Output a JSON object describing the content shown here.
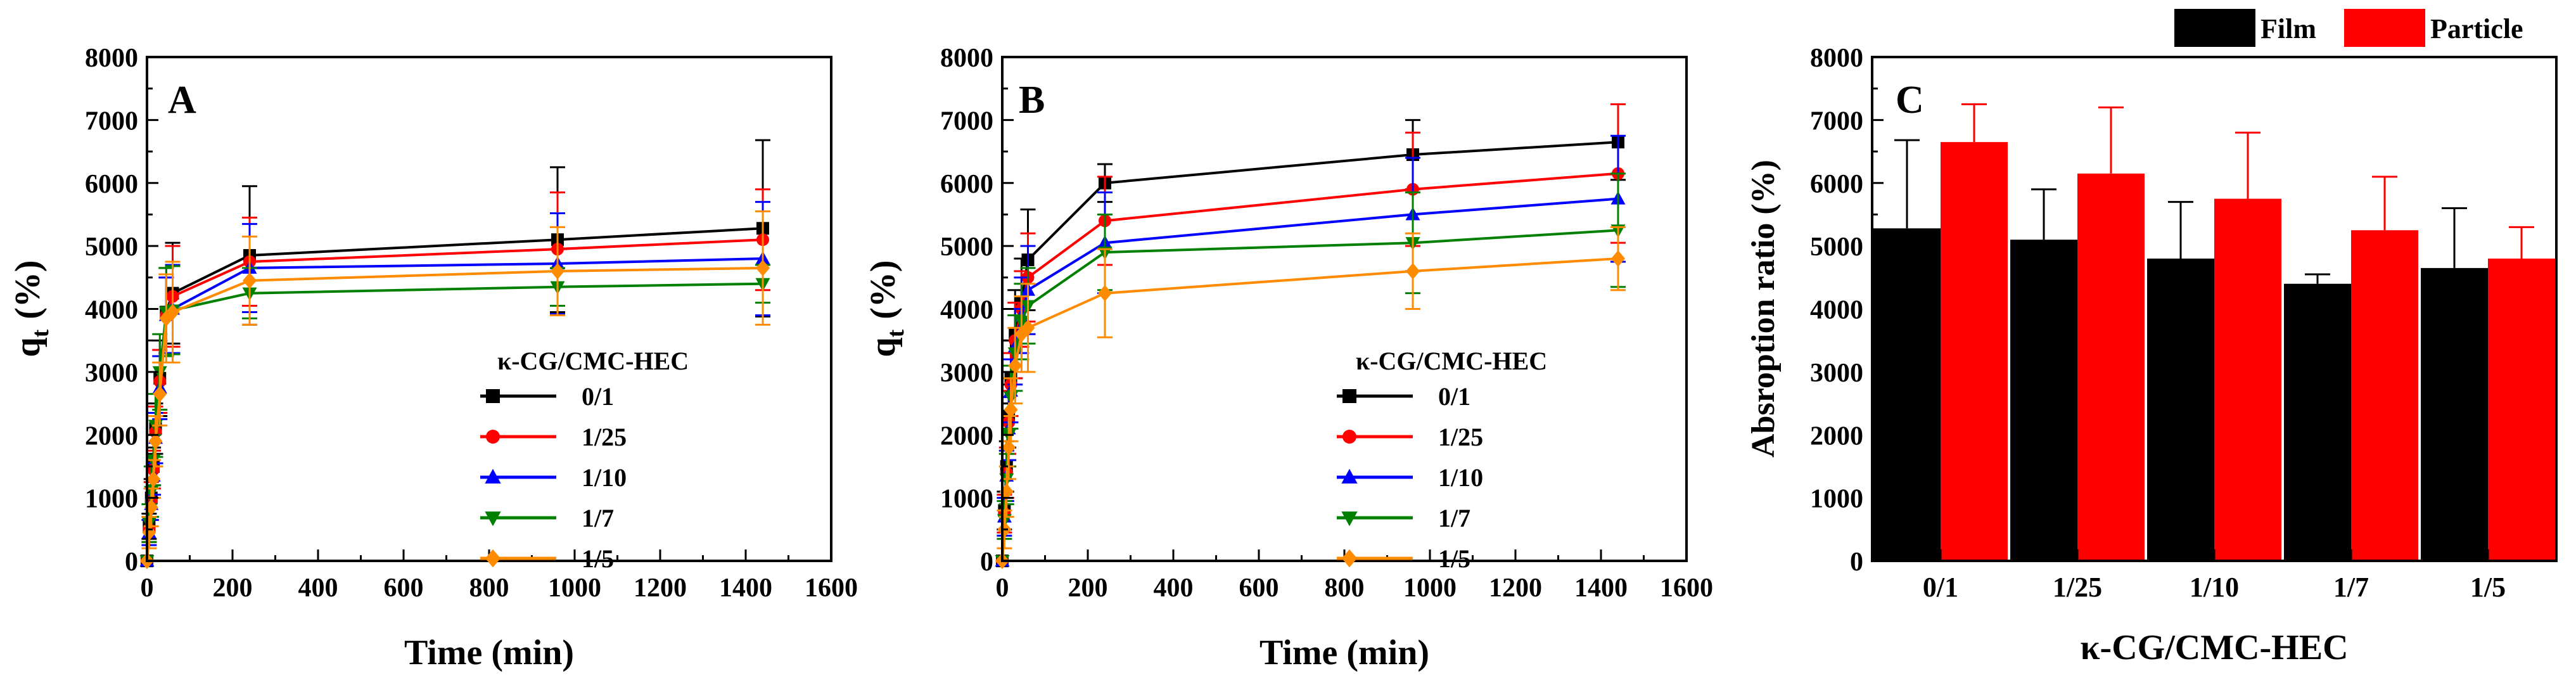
{
  "chart_data": [
    {
      "type": "line",
      "panel_label": "A",
      "xlabel": "Time (min)",
      "ylabel": "q",
      "ylabel_sub": "t",
      "ylabel_unit": "(%)",
      "xlim": [
        0,
        1600
      ],
      "ylim": [
        0,
        8000
      ],
      "xticks": [
        "0",
        "200",
        "400",
        "600",
        "800",
        "1000",
        "1200",
        "1400",
        "1600"
      ],
      "yticks": [
        "0",
        "1000",
        "2000",
        "3000",
        "4000",
        "5000",
        "6000",
        "7000",
        "8000"
      ],
      "legend_title": "κ-CG/CMC-HEC",
      "legend_position": "center-right",
      "x": [
        0,
        5,
        10,
        15,
        20,
        30,
        45,
        60,
        240,
        960,
        1440
      ],
      "series": [
        {
          "name": "0/1",
          "color": "#000000",
          "marker": "square",
          "values": [
            0,
            550,
            1000,
            1500,
            2100,
            2900,
            3950,
            4250,
            4850,
            5100,
            5280
          ],
          "errors": [
            0,
            200,
            300,
            300,
            400,
            600,
            700,
            800,
            1100,
            1150,
            1400
          ]
        },
        {
          "name": "1/25",
          "color": "#ff0000",
          "marker": "circle",
          "values": [
            0,
            500,
            950,
            1450,
            2050,
            2850,
            3900,
            4200,
            4750,
            4950,
            5100
          ],
          "errors": [
            0,
            200,
            300,
            300,
            400,
            500,
            600,
            800,
            700,
            900,
            800
          ]
        },
        {
          "name": "1/10",
          "color": "#0000ff",
          "marker": "triangle-up",
          "values": [
            0,
            450,
            900,
            1350,
            1950,
            2750,
            3900,
            4000,
            4650,
            4720,
            4800
          ],
          "errors": [
            0,
            200,
            250,
            300,
            400,
            500,
            600,
            700,
            700,
            800,
            900
          ]
        },
        {
          "name": "1/7",
          "color": "#008000",
          "marker": "triangle-down",
          "values": [
            0,
            600,
            1100,
            1600,
            2150,
            3000,
            3950,
            3980,
            4250,
            4350,
            4400
          ],
          "errors": [
            0,
            300,
            400,
            400,
            500,
            600,
            700,
            700,
            400,
            300,
            300
          ]
        },
        {
          "name": "1/5",
          "color": "#ff8c00",
          "marker": "diamond",
          "values": [
            0,
            450,
            850,
            1300,
            1900,
            2650,
            3850,
            3950,
            4450,
            4600,
            4650
          ],
          "errors": [
            0,
            250,
            300,
            300,
            400,
            500,
            700,
            800,
            700,
            700,
            900
          ]
        }
      ]
    },
    {
      "type": "line",
      "panel_label": "B",
      "xlabel": "Time (min)",
      "ylabel": "q",
      "ylabel_sub": "t",
      "ylabel_unit": "(%)",
      "xlim": [
        0,
        1600
      ],
      "ylim": [
        0,
        8000
      ],
      "xticks": [
        "0",
        "200",
        "400",
        "600",
        "800",
        "1000",
        "1200",
        "1400",
        "1600"
      ],
      "yticks": [
        "0",
        "1000",
        "2000",
        "3000",
        "4000",
        "5000",
        "6000",
        "7000",
        "8000"
      ],
      "legend_title": "κ-CG/CMC-HEC",
      "legend_position": "center-right",
      "x": [
        0,
        5,
        10,
        15,
        20,
        30,
        45,
        60,
        240,
        960,
        1440
      ],
      "series": [
        {
          "name": "0/1",
          "color": "#000000",
          "marker": "square",
          "values": [
            0,
            800,
            1500,
            2300,
            2900,
            3600,
            4100,
            4780,
            6000,
            6450,
            6650
          ],
          "errors": [
            0,
            300,
            400,
            500,
            600,
            700,
            700,
            800,
            300,
            550,
            600
          ]
        },
        {
          "name": "1/25",
          "color": "#ff0000",
          "marker": "circle",
          "values": [
            0,
            750,
            1400,
            2200,
            2800,
            3500,
            4000,
            4500,
            5400,
            5900,
            6150
          ],
          "errors": [
            0,
            300,
            400,
            500,
            500,
            600,
            600,
            700,
            700,
            900,
            1100
          ]
        },
        {
          "name": "1/10",
          "color": "#0000ff",
          "marker": "triangle-up",
          "values": [
            0,
            700,
            1350,
            2100,
            2700,
            3400,
            3900,
            4300,
            5050,
            5500,
            5750
          ],
          "errors": [
            0,
            300,
            400,
            500,
            500,
            600,
            600,
            700,
            800,
            900,
            1000
          ]
        },
        {
          "name": "1/7",
          "color": "#008000",
          "marker": "triangle-down",
          "values": [
            0,
            650,
            1300,
            2000,
            2600,
            3300,
            3800,
            4050,
            4900,
            5050,
            5250
          ],
          "errors": [
            0,
            300,
            400,
            500,
            500,
            600,
            600,
            600,
            600,
            800,
            900
          ]
        },
        {
          "name": "1/5",
          "color": "#ff8c00",
          "marker": "diamond",
          "values": [
            0,
            500,
            1100,
            1800,
            2400,
            3100,
            3600,
            3700,
            4250,
            4600,
            4800
          ],
          "errors": [
            0,
            300,
            400,
            500,
            500,
            600,
            600,
            700,
            700,
            600,
            500
          ]
        }
      ]
    },
    {
      "type": "bar",
      "panel_label": "C",
      "xlabel": "κ-CG/CMC-HEC",
      "ylabel": "Absroption ratio (%)",
      "ylim": [
        0,
        8000
      ],
      "yticks": [
        "0",
        "1000",
        "2000",
        "3000",
        "4000",
        "5000",
        "6000",
        "7000",
        "8000"
      ],
      "categories": [
        "0/1",
        "1/25",
        "1/10",
        "1/7",
        "1/5"
      ],
      "legend_position": "top (outside)",
      "series": [
        {
          "name": "Film",
          "color": "#000000",
          "values": [
            5280,
            5100,
            4800,
            4400,
            4650
          ],
          "errors": [
            1400,
            800,
            900,
            150,
            950
          ]
        },
        {
          "name": "Particle",
          "color": "#ff0000",
          "values": [
            6650,
            6150,
            5750,
            5250,
            4800
          ],
          "errors": [
            600,
            1050,
            1050,
            850,
            500
          ]
        }
      ]
    }
  ]
}
